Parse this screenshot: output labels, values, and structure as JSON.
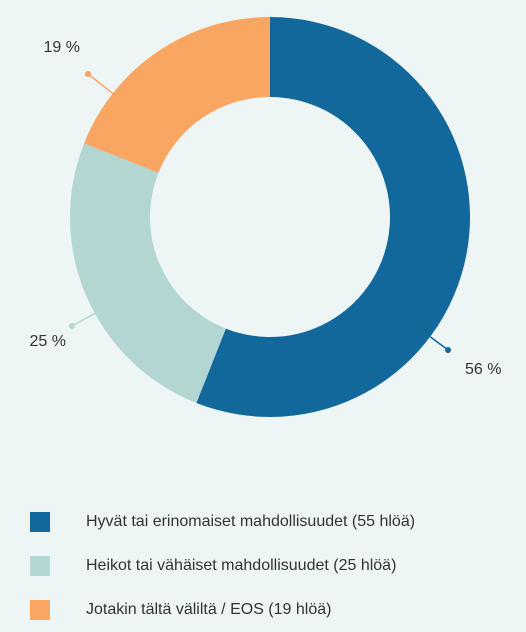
{
  "chart_data": {
    "type": "pie",
    "categories": [
      "Hyvät tai erinomaiset mahdollisuudet (55 hlöä)",
      "Heikot tai vähäiset mahdollisuudet (25 hlöä)",
      "Jotakin tältä väliltä / EOS (19 hlöä)"
    ],
    "values": [
      56,
      25,
      19
    ],
    "value_labels": [
      "56 %",
      "25 %",
      "19 %"
    ],
    "colors": [
      "#12679b",
      "#b3d6d3",
      "#f9a662"
    ],
    "donut": true,
    "legend": "bottom"
  }
}
